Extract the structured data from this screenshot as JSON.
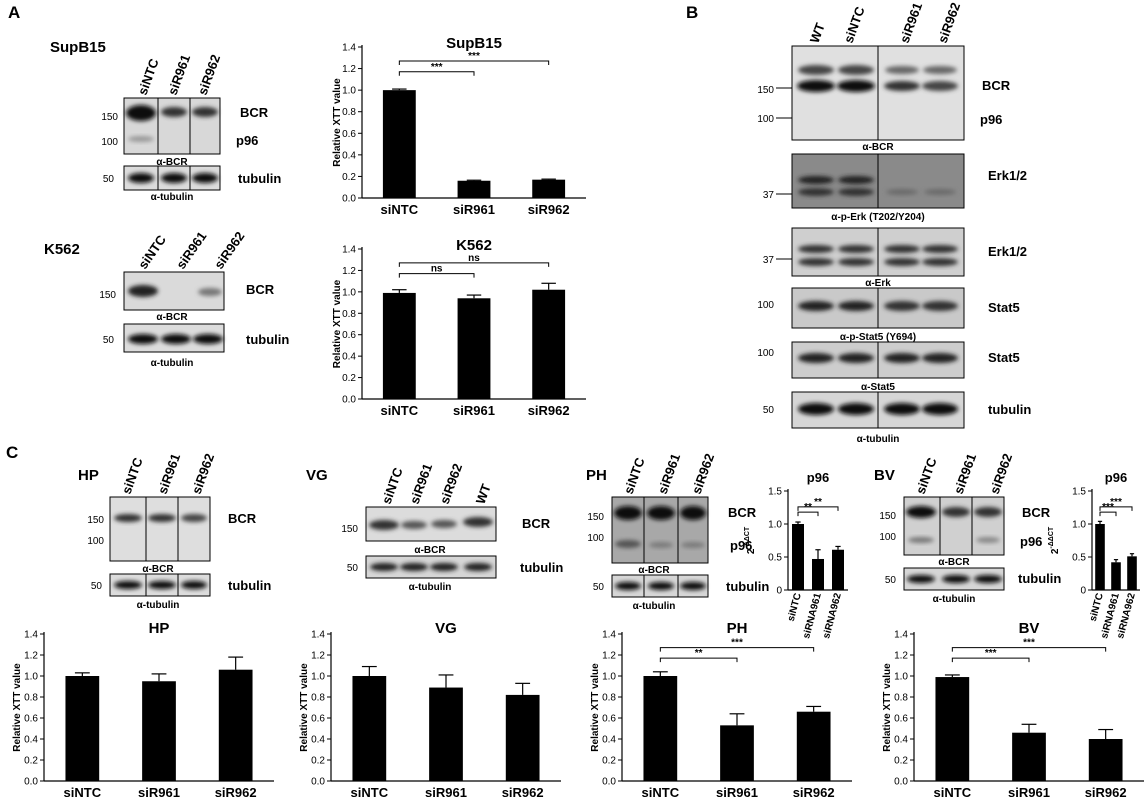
{
  "panels": {
    "a": "A",
    "b": "B",
    "c": "C"
  },
  "blots": {
    "supb15": {
      "cell": "SupB15",
      "lanes": [
        "siNTC",
        "siR961",
        "siR962"
      ],
      "mw": [
        "150",
        "100",
        "50"
      ],
      "bands": [
        "BCR",
        "p96",
        "tubulin"
      ],
      "ab": [
        "α-BCR",
        "α-tubulin"
      ]
    },
    "k562": {
      "cell": "K562",
      "lanes": [
        "siNTC",
        "siR961",
        "siR962"
      ],
      "mw": [
        "150",
        "50"
      ],
      "bands": [
        "BCR",
        "tubulin"
      ],
      "ab": [
        "α-BCR",
        "α-tubulin"
      ]
    },
    "b": {
      "lanes": [
        "WT",
        "siNTC",
        "siR961",
        "siR962"
      ],
      "mw": [
        "150",
        "100",
        "37",
        "37",
        "100",
        "100",
        "50"
      ],
      "bands": [
        "BCR",
        "p96",
        "Erk1/2",
        "Erk1/2",
        "Stat5",
        "Stat5",
        "tubulin"
      ],
      "ab": [
        "α-BCR",
        "α-p-Erk (T202/Y204)",
        "α-Erk",
        "α-p-Stat5 (Y694)",
        "α-Stat5",
        "α-tubulin"
      ]
    },
    "hp": {
      "cell": "HP",
      "lanes": [
        "siNTC",
        "siR961",
        "siR962"
      ],
      "mw": [
        "150",
        "100",
        "50"
      ],
      "bands": [
        "BCR",
        "tubulin"
      ],
      "ab": [
        "α-BCR",
        "α-tubulin"
      ]
    },
    "vg": {
      "cell": "VG",
      "lanes": [
        "siNTC",
        "siR961",
        "siR962",
        "WT"
      ],
      "mw": [
        "150",
        "50"
      ],
      "bands": [
        "BCR",
        "tubulin"
      ],
      "ab": [
        "α-BCR",
        "α-tubulin"
      ]
    },
    "ph": {
      "cell": "PH",
      "lanes": [
        "siNTC",
        "siR961",
        "siR962"
      ],
      "mw": [
        "150",
        "100",
        "50"
      ],
      "bands": [
        "BCR",
        "p96",
        "tubulin"
      ],
      "ab": [
        "α-BCR",
        "α-tubulin"
      ]
    },
    "bv": {
      "cell": "BV",
      "lanes": [
        "siNTC",
        "siR961",
        "siR962"
      ],
      "mw": [
        "150",
        "100",
        "50"
      ],
      "bands": [
        "BCR",
        "p96",
        "tubulin"
      ],
      "ab": [
        "α-BCR",
        "α-tubulin"
      ]
    }
  },
  "chart_data": [
    {
      "id": "supb15",
      "type": "bar",
      "title": "SupB15",
      "ylabel": "Relative XTT value",
      "categories": [
        "siNTC",
        "siR961",
        "siR962"
      ],
      "values": [
        1.0,
        0.16,
        0.17
      ],
      "errors": [
        0.01,
        0.005,
        0.005
      ],
      "ylim": [
        0,
        1.4
      ],
      "yticks": [
        "0.0",
        "0.2",
        "0.4",
        "0.6",
        "0.8",
        "1.0",
        "1.2",
        "1.4"
      ],
      "sig": [
        {
          "from": 0,
          "to": 1,
          "label": "***"
        },
        {
          "from": 0,
          "to": 2,
          "label": "***"
        }
      ]
    },
    {
      "id": "k562",
      "type": "bar",
      "title": "K562",
      "ylabel": "Relative XTT value",
      "categories": [
        "siNTC",
        "siR961",
        "siR962"
      ],
      "values": [
        0.99,
        0.94,
        1.02
      ],
      "errors": [
        0.03,
        0.03,
        0.06
      ],
      "ylim": [
        0,
        1.4
      ],
      "yticks": [
        "0.0",
        "0.2",
        "0.4",
        "0.6",
        "0.8",
        "1.0",
        "1.2",
        "1.4"
      ],
      "sig": [
        {
          "from": 0,
          "to": 1,
          "label": "ns"
        },
        {
          "from": 0,
          "to": 2,
          "label": "ns"
        }
      ]
    },
    {
      "id": "ph_p96",
      "type": "bar",
      "title": "p96",
      "ylabel": "2-ΔΔCT",
      "categories": [
        "siNTC",
        "siRNA961",
        "siRNA962"
      ],
      "values": [
        1.0,
        0.47,
        0.61
      ],
      "errors": [
        0.03,
        0.14,
        0.05
      ],
      "ylim": [
        0,
        1.5
      ],
      "yticks": [
        "0",
        "0.5",
        "1.0",
        "1.5"
      ],
      "sig": [
        {
          "from": 0,
          "to": 1,
          "label": "**"
        },
        {
          "from": 0,
          "to": 2,
          "label": "**"
        }
      ]
    },
    {
      "id": "bv_p96",
      "type": "bar",
      "title": "p96",
      "ylabel": "2-ΔΔCT",
      "categories": [
        "siNTC",
        "siRNA961",
        "siRNA962"
      ],
      "values": [
        1.0,
        0.42,
        0.51
      ],
      "errors": [
        0.04,
        0.04,
        0.04
      ],
      "ylim": [
        0,
        1.5
      ],
      "yticks": [
        "0",
        "0.5",
        "1.0",
        "1.5"
      ],
      "sig": [
        {
          "from": 0,
          "to": 1,
          "label": "***"
        },
        {
          "from": 0,
          "to": 2,
          "label": "***"
        }
      ]
    },
    {
      "id": "hp",
      "type": "bar",
      "title": "HP",
      "ylabel": "Relative XTT value",
      "categories": [
        "siNTC",
        "siR961",
        "siR962"
      ],
      "values": [
        1.0,
        0.95,
        1.06
      ],
      "errors": [
        0.03,
        0.07,
        0.12
      ],
      "ylim": [
        0,
        1.4
      ],
      "yticks": [
        "0.0",
        "0.2",
        "0.4",
        "0.6",
        "0.8",
        "1.0",
        "1.2",
        "1.4"
      ],
      "sig": []
    },
    {
      "id": "vg",
      "type": "bar",
      "title": "VG",
      "ylabel": "Relative XTT value",
      "categories": [
        "siNTC",
        "siR961",
        "siR962"
      ],
      "values": [
        1.0,
        0.89,
        0.82
      ],
      "errors": [
        0.09,
        0.12,
        0.11
      ],
      "ylim": [
        0,
        1.4
      ],
      "yticks": [
        "0.0",
        "0.2",
        "0.4",
        "0.6",
        "0.8",
        "1.0",
        "1.2",
        "1.4"
      ],
      "sig": []
    },
    {
      "id": "ph",
      "type": "bar",
      "title": "PH",
      "ylabel": "Relative XTT value",
      "categories": [
        "siNTC",
        "siR961",
        "siR962"
      ],
      "values": [
        1.0,
        0.53,
        0.66
      ],
      "errors": [
        0.04,
        0.11,
        0.05
      ],
      "ylim": [
        0,
        1.4
      ],
      "yticks": [
        "0.0",
        "0.2",
        "0.4",
        "0.6",
        "0.8",
        "1.0",
        "1.2",
        "1.4"
      ],
      "sig": [
        {
          "from": 0,
          "to": 1,
          "label": "**"
        },
        {
          "from": 0,
          "to": 2,
          "label": "***"
        }
      ]
    },
    {
      "id": "bv",
      "type": "bar",
      "title": "BV",
      "ylabel": "Relative XTT value",
      "categories": [
        "siNTC",
        "siR961",
        "siR962"
      ],
      "values": [
        0.99,
        0.46,
        0.4
      ],
      "errors": [
        0.02,
        0.08,
        0.09
      ],
      "ylim": [
        0,
        1.4
      ],
      "yticks": [
        "0.0",
        "0.2",
        "0.4",
        "0.6",
        "0.8",
        "1.0",
        "1.2",
        "1.4"
      ],
      "sig": [
        {
          "from": 0,
          "to": 1,
          "label": "***"
        },
        {
          "from": 0,
          "to": 2,
          "label": "***"
        }
      ]
    }
  ]
}
